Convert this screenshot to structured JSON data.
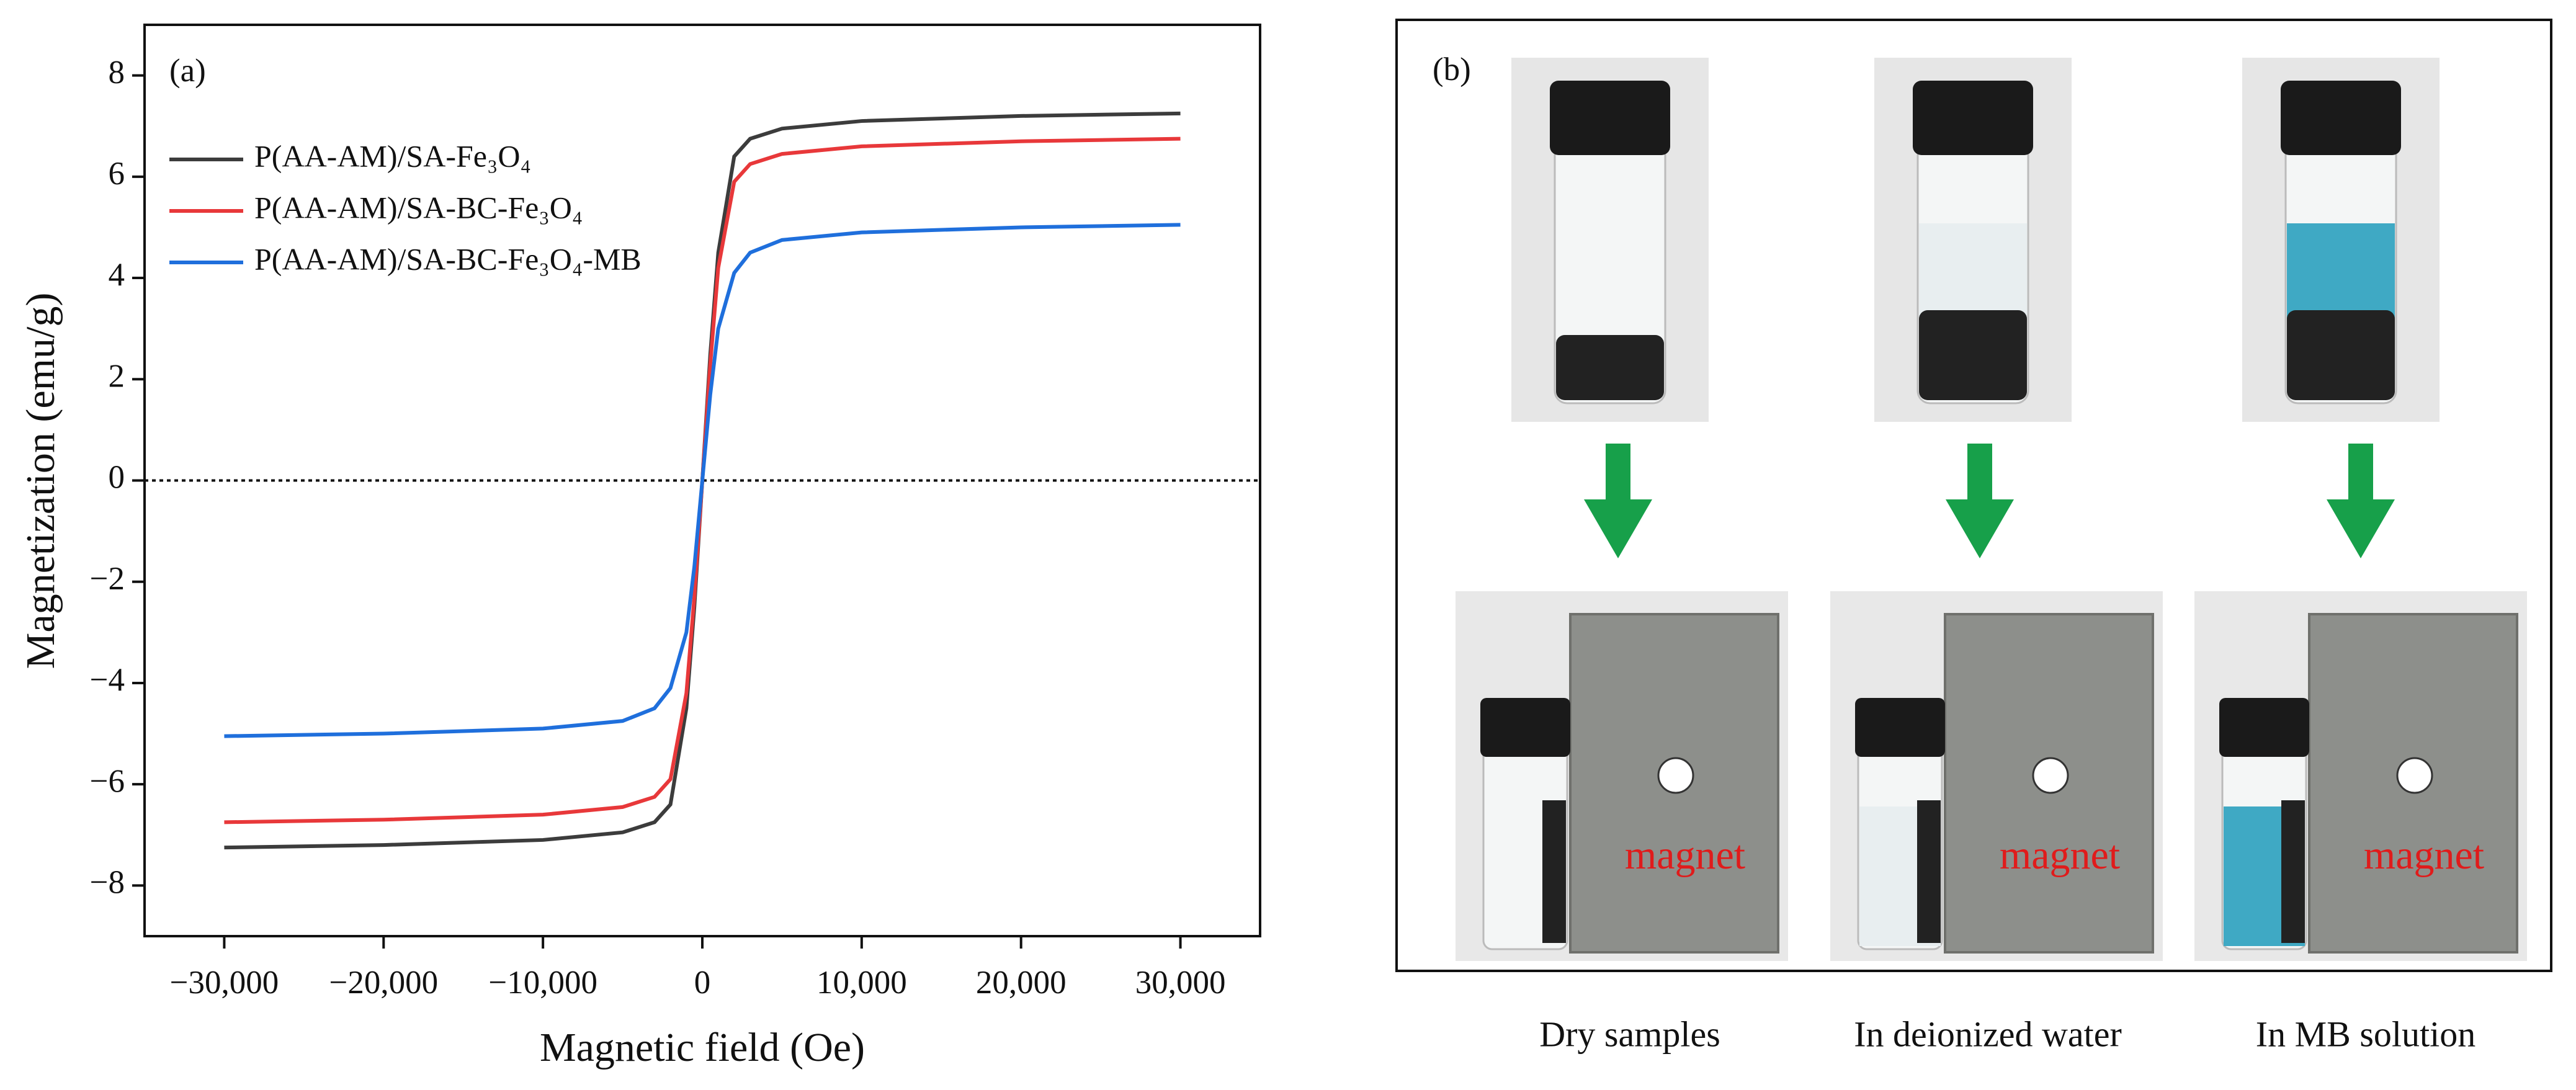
{
  "chart_data": {
    "type": "line",
    "panel_label": "(a)",
    "xlabel": "Magnetic field (Oe)",
    "ylabel": "Magnetization (emu/g)",
    "x": [
      -30000,
      -20000,
      -10000,
      -5000,
      -3000,
      -2000,
      -1000,
      -500,
      0,
      500,
      1000,
      2000,
      3000,
      5000,
      10000,
      20000,
      30000
    ],
    "series": [
      {
        "name": "P(AA-AM)/SA-Fe₃O₄",
        "color": "#3c3c3c",
        "values": [
          -7.25,
          -7.2,
          -7.1,
          -6.95,
          -6.75,
          -6.4,
          -4.5,
          -2.5,
          0,
          2.5,
          4.5,
          6.4,
          6.75,
          6.95,
          7.1,
          7.2,
          7.25
        ]
      },
      {
        "name": "P(AA-AM)/SA-BC-Fe₃O₄",
        "color": "#e8383a",
        "values": [
          -6.75,
          -6.7,
          -6.6,
          -6.45,
          -6.25,
          -5.9,
          -4.2,
          -2.3,
          0,
          2.3,
          4.2,
          5.9,
          6.25,
          6.45,
          6.6,
          6.7,
          6.75
        ]
      },
      {
        "name": "P(AA-AM)/SA-BC-Fe₃O₄-MB",
        "color": "#1f6fdc",
        "values": [
          -5.05,
          -5.0,
          -4.9,
          -4.75,
          -4.5,
          -4.1,
          -3.0,
          -1.7,
          0,
          1.7,
          3.0,
          4.1,
          4.5,
          4.75,
          4.9,
          5.0,
          5.05
        ]
      }
    ],
    "xlim": [
      -35000,
      35000
    ],
    "ylim": [
      -9,
      9
    ],
    "xticks": [
      {
        "value": -30000,
        "label": "−30,000"
      },
      {
        "value": -20000,
        "label": "−20,000"
      },
      {
        "value": -10000,
        "label": "−10,000"
      },
      0,
      {
        "value": 10000,
        "label": "10,000"
      },
      {
        "value": 20000,
        "label": "20,000"
      },
      {
        "value": 30000,
        "label": "30,000"
      }
    ],
    "yticks": [
      {
        "value": -8,
        "label": "−8"
      },
      {
        "value": -6,
        "label": "−6"
      },
      {
        "value": -4,
        "label": "−4"
      },
      {
        "value": -2,
        "label": "−2"
      },
      0,
      2,
      4,
      6,
      8
    ],
    "zero_line": true,
    "legend": "upper left"
  },
  "panel_b": {
    "label": "(b)",
    "samples": [
      {
        "caption": "Dry samples",
        "magnet": "magnet"
      },
      {
        "caption": "In deionized water",
        "magnet": "magnet"
      },
      {
        "caption": "In MB solution",
        "magnet": "magnet"
      }
    ]
  }
}
